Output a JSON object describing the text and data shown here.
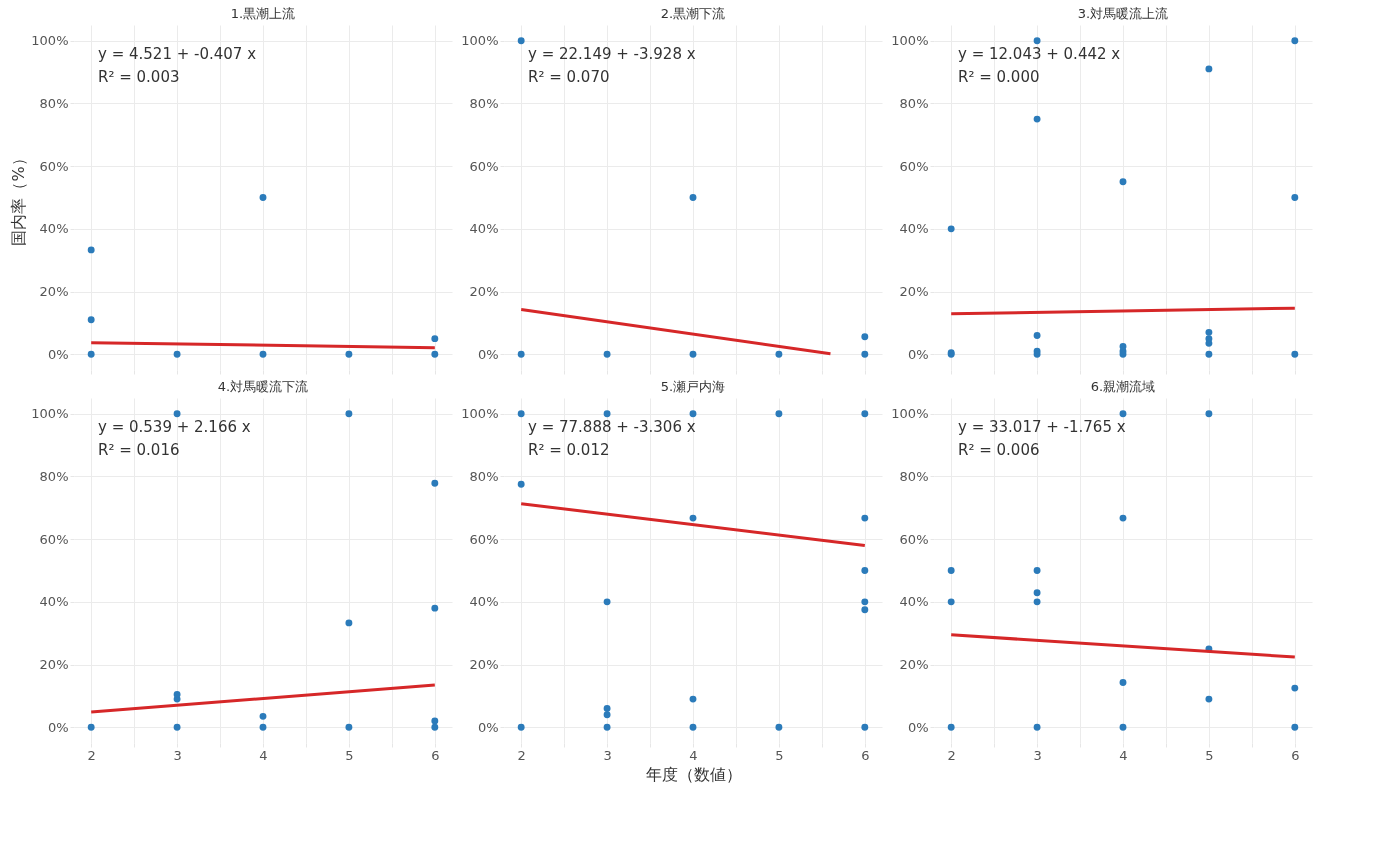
{
  "chart_data": [
    {
      "type": "scatter",
      "title": "1.黒潮上流",
      "ylabel": "国内率（%）",
      "xlim": [
        1.8,
        6.2
      ],
      "ylim": [
        -5,
        105
      ],
      "xticks": [
        2,
        {
          "value": 2.5,
          "label": null
        },
        3,
        {
          "value": 3.5,
          "label": null
        },
        4,
        {
          "value": 4.5,
          "label": null
        },
        5,
        {
          "value": 5.5,
          "label": null
        },
        6
      ],
      "yticks": [
        {
          "value": 0,
          "label": "0%"
        },
        {
          "value": 20,
          "label": "20%"
        },
        {
          "value": 40,
          "label": "40%"
        },
        {
          "value": 60,
          "label": "60%"
        },
        {
          "value": 80,
          "label": "80%"
        },
        {
          "value": 100,
          "label": "100%"
        }
      ],
      "grid": true,
      "tick_labels": "y",
      "annotations": [
        "y = 4.521 + -0.407 x",
        "R² = 0.003"
      ],
      "series": [
        {
          "type": "scatter",
          "marker": "circle",
          "color": "#2b7bba",
          "x": [
            2,
            2,
            2,
            3,
            4,
            4,
            5,
            6,
            6
          ],
          "values": [
            0,
            11,
            33.3,
            0,
            0,
            50,
            0,
            0,
            5
          ]
        },
        {
          "type": "line",
          "color": "#d62728",
          "x": [
            2,
            6
          ],
          "values": [
            3.7,
            2.1
          ]
        }
      ]
    },
    {
      "type": "scatter",
      "title": "2.黒潮下流",
      "xlim": [
        1.8,
        6.2
      ],
      "ylim": [
        -5,
        105
      ],
      "xticks": [
        2,
        {
          "value": 2.5,
          "label": null
        },
        3,
        {
          "value": 3.5,
          "label": null
        },
        4,
        {
          "value": 4.5,
          "label": null
        },
        5,
        {
          "value": 5.5,
          "label": null
        },
        6
      ],
      "yticks": [
        {
          "value": 0,
          "label": "0%"
        },
        {
          "value": 20,
          "label": "20%"
        },
        {
          "value": 40,
          "label": "40%"
        },
        {
          "value": 60,
          "label": "60%"
        },
        {
          "value": 80,
          "label": "80%"
        },
        {
          "value": 100,
          "label": "100%"
        }
      ],
      "grid": true,
      "tick_labels": "y",
      "annotations": [
        "y = 22.149 + -3.928 x",
        "R² = 0.070"
      ],
      "series": [
        {
          "type": "scatter",
          "marker": "circle",
          "color": "#2b7bba",
          "x": [
            2,
            2,
            3,
            4,
            4,
            5,
            6,
            6
          ],
          "values": [
            0,
            100,
            0,
            0,
            50,
            0,
            0,
            5.6
          ]
        },
        {
          "type": "line",
          "color": "#d62728",
          "x": [
            2,
            5.6
          ],
          "values": [
            14.3,
            0.2
          ]
        }
      ]
    },
    {
      "type": "scatter",
      "title": "3.対馬暖流上流",
      "xlim": [
        1.8,
        6.2
      ],
      "ylim": [
        -5,
        105
      ],
      "xticks": [
        2,
        {
          "value": 2.5,
          "label": null
        },
        3,
        {
          "value": 3.5,
          "label": null
        },
        4,
        {
          "value": 4.5,
          "label": null
        },
        5,
        {
          "value": 5.5,
          "label": null
        },
        6
      ],
      "yticks": [
        {
          "value": 0,
          "label": "0%"
        },
        {
          "value": 20,
          "label": "20%"
        },
        {
          "value": 40,
          "label": "40%"
        },
        {
          "value": 60,
          "label": "60%"
        },
        {
          "value": 80,
          "label": "80%"
        },
        {
          "value": 100,
          "label": "100%"
        }
      ],
      "grid": true,
      "tick_labels": "y",
      "annotations": [
        "y = 12.043 + 0.442 x",
        "R² = 0.000"
      ],
      "series": [
        {
          "type": "scatter",
          "marker": "circle",
          "color": "#2b7bba",
          "x": [
            2,
            2,
            2,
            3,
            3,
            3,
            3,
            3,
            4,
            4,
            4,
            4,
            5,
            5,
            5,
            5,
            5,
            6,
            6,
            6
          ],
          "values": [
            0,
            0.5,
            40,
            0,
            1,
            6,
            75,
            100,
            0,
            1,
            2.5,
            55,
            0,
            3.5,
            5,
            7,
            91,
            0,
            50,
            100
          ]
        },
        {
          "type": "line",
          "color": "#d62728",
          "x": [
            2,
            6
          ],
          "values": [
            12.9,
            14.7
          ]
        }
      ]
    },
    {
      "type": "scatter",
      "title": "4.対馬暖流下流",
      "xlim": [
        1.8,
        6.2
      ],
      "ylim": [
        -5,
        105
      ],
      "xticks": [
        2,
        {
          "value": 2.5,
          "label": null
        },
        3,
        {
          "value": 3.5,
          "label": null
        },
        4,
        {
          "value": 4.5,
          "label": null
        },
        5,
        {
          "value": 5.5,
          "label": null
        },
        6
      ],
      "yticks": [
        {
          "value": 0,
          "label": "0%"
        },
        {
          "value": 20,
          "label": "20%"
        },
        {
          "value": 40,
          "label": "40%"
        },
        {
          "value": 60,
          "label": "60%"
        },
        {
          "value": 80,
          "label": "80%"
        },
        {
          "value": 100,
          "label": "100%"
        }
      ],
      "grid": true,
      "annotations": [
        "y = 0.539 + 2.166 x",
        "R² = 0.016"
      ],
      "series": [
        {
          "type": "scatter",
          "marker": "circle",
          "color": "#2b7bba",
          "x": [
            2,
            3,
            3,
            3,
            3,
            4,
            4,
            5,
            5,
            5,
            6,
            6,
            6,
            6
          ],
          "values": [
            0,
            0,
            9,
            10.5,
            100,
            0,
            3.5,
            0,
            33.3,
            100,
            0,
            2,
            38,
            77.8
          ]
        },
        {
          "type": "line",
          "color": "#d62728",
          "x": [
            2,
            6
          ],
          "values": [
            4.9,
            13.5
          ]
        }
      ]
    },
    {
      "type": "scatter",
      "title": "5.瀬戸内海",
      "xlabel": "年度（数値）",
      "xlim": [
        1.8,
        6.2
      ],
      "ylim": [
        -5,
        105
      ],
      "xticks": [
        2,
        {
          "value": 2.5,
          "label": null
        },
        3,
        {
          "value": 3.5,
          "label": null
        },
        4,
        {
          "value": 4.5,
          "label": null
        },
        5,
        {
          "value": 5.5,
          "label": null
        },
        6
      ],
      "yticks": [
        {
          "value": 0,
          "label": "0%"
        },
        {
          "value": 20,
          "label": "20%"
        },
        {
          "value": 40,
          "label": "40%"
        },
        {
          "value": 60,
          "label": "60%"
        },
        {
          "value": 80,
          "label": "80%"
        },
        {
          "value": 100,
          "label": "100%"
        }
      ],
      "grid": true,
      "annotations": [
        "y = 77.888 + -3.306 x",
        "R² = 0.012"
      ],
      "series": [
        {
          "type": "scatter",
          "marker": "circle",
          "color": "#2b7bba",
          "x": [
            2,
            2,
            2,
            3,
            3,
            3,
            3,
            3,
            4,
            4,
            4,
            4,
            5,
            5,
            6,
            6,
            6,
            6,
            6,
            6
          ],
          "values": [
            0,
            77.5,
            100,
            0,
            4,
            6,
            40,
            100,
            0,
            9,
            66.7,
            100,
            0,
            100,
            0,
            37.5,
            40,
            50,
            66.7,
            100
          ]
        },
        {
          "type": "line",
          "color": "#d62728",
          "x": [
            2,
            6
          ],
          "values": [
            71.3,
            58.0
          ]
        }
      ]
    },
    {
      "type": "scatter",
      "title": "6.親潮流域",
      "xlim": [
        1.8,
        6.2
      ],
      "ylim": [
        -5,
        105
      ],
      "xticks": [
        2,
        {
          "value": 2.5,
          "label": null
        },
        3,
        {
          "value": 3.5,
          "label": null
        },
        4,
        {
          "value": 4.5,
          "label": null
        },
        5,
        {
          "value": 5.5,
          "label": null
        },
        6
      ],
      "yticks": [
        {
          "value": 0,
          "label": "0%"
        },
        {
          "value": 20,
          "label": "20%"
        },
        {
          "value": 40,
          "label": "40%"
        },
        {
          "value": 60,
          "label": "60%"
        },
        {
          "value": 80,
          "label": "80%"
        },
        {
          "value": 100,
          "label": "100%"
        }
      ],
      "grid": true,
      "annotations": [
        "y = 33.017 + -1.765 x",
        "R² = 0.006"
      ],
      "series": [
        {
          "type": "scatter",
          "marker": "circle",
          "color": "#2b7bba",
          "x": [
            2,
            2,
            2,
            3,
            3,
            3,
            3,
            4,
            4,
            4,
            4,
            5,
            5,
            5,
            6,
            6
          ],
          "values": [
            0,
            40,
            50,
            0,
            40,
            42.9,
            50,
            0,
            14.3,
            66.7,
            100,
            9,
            25,
            100,
            0,
            12.5
          ]
        },
        {
          "type": "line",
          "color": "#d62728",
          "x": [
            2,
            6
          ],
          "values": [
            29.5,
            22.4
          ]
        }
      ]
    }
  ]
}
